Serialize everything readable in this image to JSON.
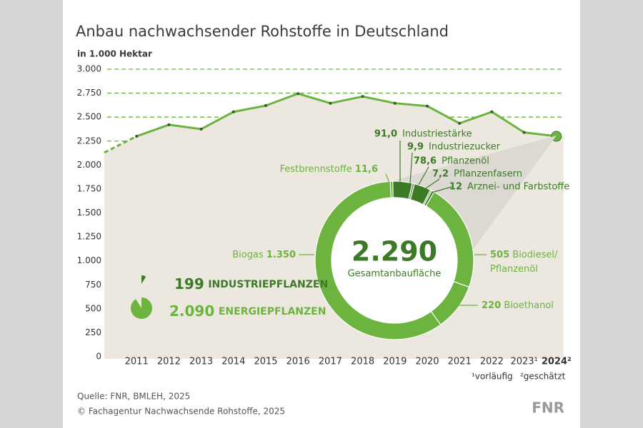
{
  "chart_data": [
    {
      "type": "line",
      "title": "Anbau nachwachsender Rohstoffe in Deutschland",
      "y_label": "in 1.000 Hektar",
      "categories": [
        null,
        "2011",
        "2012",
        "2013",
        "2014",
        "2015",
        "2016",
        "2017",
        "2018",
        "2019",
        "2020",
        "2021",
        "2022",
        "2023¹",
        "2024²"
      ],
      "values": [
        2130,
        2300,
        2420,
        2375,
        2555,
        2620,
        2745,
        2645,
        2715,
        2645,
        2615,
        2435,
        2555,
        2340,
        2300
      ],
      "ylim": [
        0,
        3000
      ],
      "yticks": [
        0,
        {
          "value": 250,
          "label": "250"
        },
        {
          "value": 500,
          "label": "500"
        },
        {
          "value": 750,
          "label": "750"
        },
        {
          "value": 1000,
          "label": "1.000"
        },
        {
          "value": 1250,
          "label": "1.250"
        },
        {
          "value": 1500,
          "label": "1.500"
        },
        {
          "value": 1750,
          "label": "1.750"
        },
        {
          "value": 2000,
          "label": "2.000"
        },
        {
          "value": 2250,
          "label": "2.250"
        },
        {
          "value": 2500,
          "label": "2.500"
        },
        {
          "value": 2750,
          "label": "2.750"
        },
        {
          "value": 3000,
          "label": "3.000"
        }
      ],
      "grid": true,
      "color": "#6cb33f",
      "footnotes": [
        "¹vorläufig",
        "²geschätzt"
      ]
    },
    {
      "type": "pie",
      "categories": [
        "Festbrennstoffe",
        "Industriestärke",
        "Industriezucker",
        "Pflanzenöl",
        "Pflanzenfasern",
        "Arznei- und Farbstoffe",
        "Biodiesel/ Pflanzenöl",
        "Bioethanol",
        "Biogas"
      ],
      "values": [
        11.6,
        91.0,
        9.9,
        78.6,
        7.2,
        12,
        505,
        220,
        1350
      ],
      "value_labels": [
        "11,6",
        "91,0",
        "9,9",
        "78,6",
        "7,2",
        "12",
        "505",
        "220",
        "1.350"
      ],
      "colors": [
        "#6cb33f",
        "#3d7a27",
        "#5a9a35",
        "#3d7a27",
        "#5a9a35",
        "#3d7a27",
        "#6cb33f",
        "#6cb33f",
        "#6cb33f"
      ],
      "total": {
        "value": 2290,
        "value_label": "2.290",
        "label": "Gesamtanbaufläche"
      },
      "summary": [
        {
          "value": 199,
          "label": "INDUSTRIEPFLANZEN",
          "color": "#3d7a27"
        },
        {
          "value": 2090,
          "value_label": "2.090",
          "label": "ENERGIEPFLANZEN",
          "color": "#6cb33f"
        }
      ]
    }
  ],
  "footer": {
    "source": "Quelle: FNR, BMLEH, 2025",
    "copyright": "© Fachagentur Nachwachsende Rohstoffe, 2025",
    "logo": "FNR"
  }
}
